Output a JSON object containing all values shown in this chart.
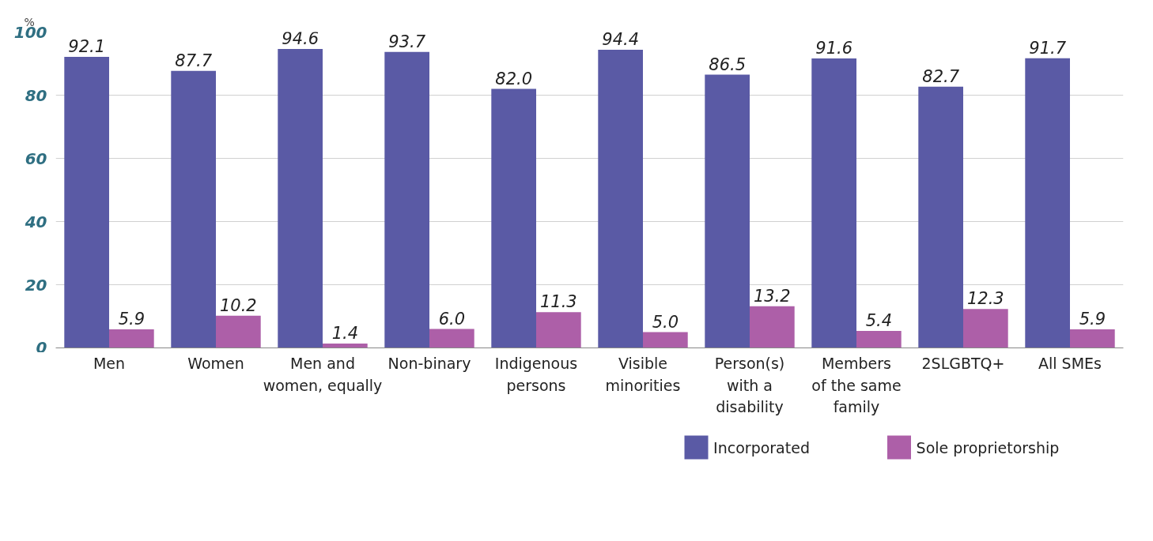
{
  "chart_data": {
    "type": "bar",
    "ylabel": "%",
    "categories": [
      "Men",
      "Women",
      "Men and\nwomen, equally",
      "Non-binary",
      "Indigenous\npersons",
      "Visible\nminorities",
      "Person(s)\nwith a\ndisability",
      "Members\nof the same\nfamily",
      "2SLGBTQ+",
      "All SMEs"
    ],
    "series": [
      {
        "name": "Incorporated",
        "color": "#5a5aa5",
        "values": [
          92.1,
          87.7,
          94.6,
          93.7,
          82.0,
          94.4,
          86.5,
          91.6,
          82.7,
          91.7
        ],
        "value_labels": [
          "92.1",
          "87.7",
          "94.6",
          "93.7",
          "82.0",
          "94.4",
          "86.5",
          "91.6",
          "82.7",
          "91.7"
        ]
      },
      {
        "name": "Sole proprietorship",
        "color": "#ad5fa8",
        "values": [
          5.9,
          10.2,
          1.4,
          6.0,
          11.3,
          5.0,
          13.2,
          5.4,
          12.3,
          5.9
        ],
        "value_labels": [
          "5.9",
          "10.2",
          "1.4",
          "6.0",
          "11.3",
          "5.0",
          "13.2",
          "5.4",
          "12.3",
          "5.9"
        ]
      }
    ],
    "ylim": [
      0,
      100
    ],
    "yticks": [
      0,
      20,
      40,
      60,
      80,
      100
    ],
    "grid": "y",
    "legend": "bottom right"
  }
}
